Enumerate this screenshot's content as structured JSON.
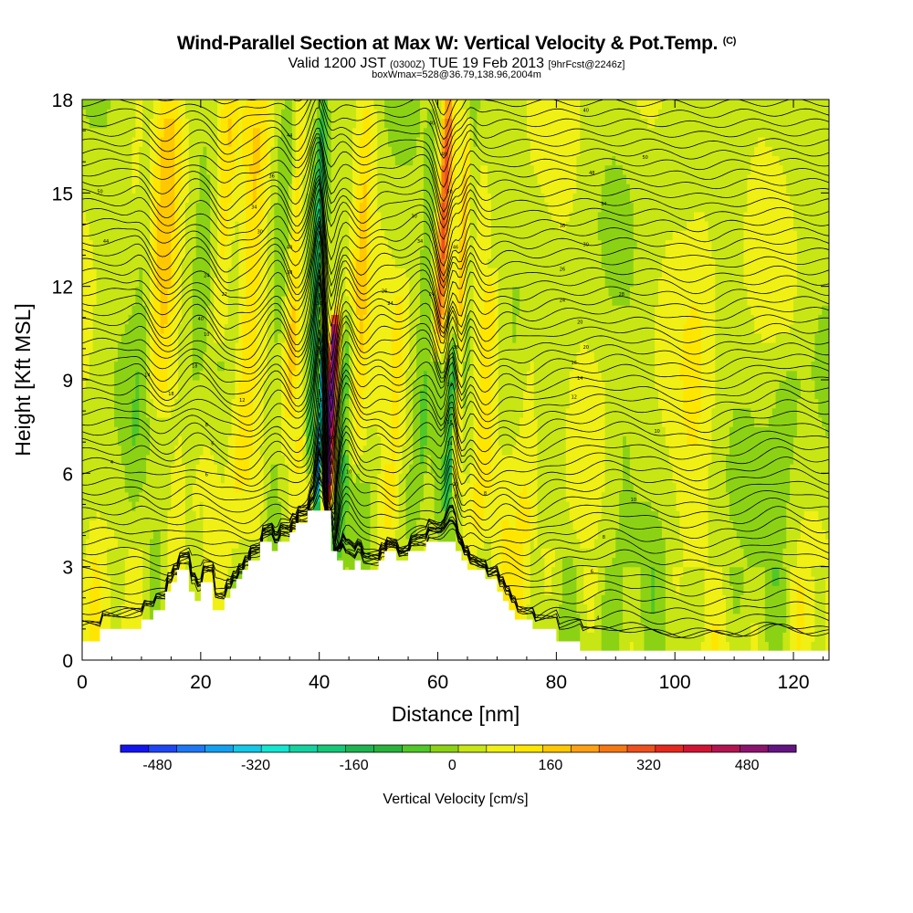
{
  "chart_data": {
    "type": "heatmap",
    "title": "Wind-Parallel Section at Max W: Vertical Velocity & Pot.Temp.",
    "title_mark": "(C)",
    "subtitle_main_a": "Valid 1200 JST",
    "subtitle_small_a": "(0300Z)",
    "subtitle_main_b": "TUE 19 Feb 2013",
    "subtitle_small_b": "[9hrFcst@2246z]",
    "subtitle2": "boxWmax=528@36.79,138.96,2004m",
    "xlabel": "Distance [nm]",
    "ylabel": "Height [Kft MSL]",
    "xlim": [
      0,
      126
    ],
    "ylim": [
      0,
      18
    ],
    "xticks": [
      "0",
      "20",
      "40",
      "60",
      "80",
      "100",
      "120"
    ],
    "yticks": [
      "0",
      "3",
      "6",
      "9",
      "12",
      "15",
      "18"
    ],
    "colorbar": {
      "label": "Vertical Velocity [cm/s]",
      "ticks": [
        "-480",
        "-320",
        "-160",
        "0",
        "160",
        "320",
        "480"
      ],
      "tick_values": [
        -480,
        -320,
        -160,
        0,
        160,
        320,
        480
      ],
      "range": [
        -540,
        560
      ],
      "colors": [
        "#1414f0",
        "#1e46f5",
        "#1e78f5",
        "#14a0f0",
        "#14c8e6",
        "#14e6d2",
        "#14d2a0",
        "#14c878",
        "#1eb450",
        "#28b43c",
        "#50c828",
        "#8cd214",
        "#c8e614",
        "#f0f014",
        "#ffe600",
        "#ffc800",
        "#ffa014",
        "#f57814",
        "#ee501e",
        "#e6281e",
        "#d21432",
        "#b41450",
        "#8c146e",
        "#641482"
      ]
    },
    "velocity_field_cm_s": {
      "background": 40,
      "columns": [
        {
          "x": 10,
          "w": 1.2,
          "h0": 5,
          "h1": 18,
          "v": -40
        },
        {
          "x": 14,
          "w": 2.0,
          "h0": 8,
          "h1": 18,
          "v": 110
        },
        {
          "x": 19,
          "w": 1.5,
          "h0": 0,
          "h1": 18,
          "v": -30
        },
        {
          "x": 24,
          "w": 1.5,
          "h0": 10,
          "h1": 18,
          "v": 100
        },
        {
          "x": 28,
          "w": 2.0,
          "h0": 3,
          "h1": 18,
          "v": 100
        },
        {
          "x": 33,
          "w": 1.5,
          "h0": 3,
          "h1": 18,
          "v": -60
        },
        {
          "x": 36,
          "w": 1.2,
          "h0": 8,
          "h1": 18,
          "v": 110
        },
        {
          "x": 39.5,
          "w": 0.8,
          "h0": 6,
          "h1": 18,
          "v": -180
        },
        {
          "x": 40.2,
          "w": 0.5,
          "h0": 5,
          "h1": 10,
          "v": -400
        },
        {
          "x": 41.8,
          "w": 0.6,
          "h0": 5,
          "h1": 10.5,
          "v": 528
        },
        {
          "x": 42.5,
          "w": 0.8,
          "h0": 5,
          "h1": 11,
          "v": 240
        },
        {
          "x": 44,
          "w": 1.5,
          "h0": 3,
          "h1": 11,
          "v": -120
        },
        {
          "x": 47,
          "w": 1.5,
          "h0": 6,
          "h1": 18,
          "v": 100
        },
        {
          "x": 53,
          "w": 1.5,
          "h0": 4,
          "h1": 12,
          "v": 60
        },
        {
          "x": 58,
          "w": 1.5,
          "h0": 3,
          "h1": 18,
          "v": -50
        },
        {
          "x": 61,
          "w": 1.0,
          "h0": 10,
          "h1": 18,
          "v": 240
        },
        {
          "x": 62.3,
          "w": 0.7,
          "h0": 5,
          "h1": 10,
          "v": -160
        },
        {
          "x": 64,
          "w": 0.8,
          "h0": 5,
          "h1": 17,
          "v": 160
        },
        {
          "x": 65,
          "w": 1.0,
          "h0": 8,
          "h1": 18,
          "v": -100
        },
        {
          "x": 68,
          "w": 1.5,
          "h0": 4,
          "h1": 12,
          "v": 90
        },
        {
          "x": 75,
          "w": 2.0,
          "h0": 0,
          "h1": 12,
          "v": 60
        },
        {
          "x": 90,
          "w": 3.0,
          "h0": 0,
          "h1": 8,
          "v": -40
        },
        {
          "x": 104,
          "w": 3.0,
          "h0": 2,
          "h1": 18,
          "v": 40
        },
        {
          "x": 118,
          "w": 3.0,
          "h0": 0,
          "h1": 10,
          "v": -50
        }
      ]
    },
    "terrain_kft": {
      "x": [
        0,
        3,
        3,
        9,
        10,
        11,
        12,
        13,
        14,
        15,
        16,
        17,
        18,
        19,
        20,
        21,
        22,
        23,
        24,
        25,
        26,
        27,
        28,
        29,
        30,
        31,
        32,
        33,
        34,
        35,
        36,
        37,
        38,
        39,
        40,
        41,
        42,
        43,
        44,
        45,
        46,
        47,
        48,
        49,
        50,
        51,
        52,
        53,
        54,
        55,
        56,
        57,
        58,
        59,
        60,
        61,
        62,
        63,
        64,
        65,
        66,
        67,
        68,
        69,
        70,
        71,
        72,
        73,
        74,
        75,
        76,
        77,
        78,
        79,
        80,
        81,
        82,
        83,
        84,
        85,
        86,
        87,
        126
      ],
      "z": [
        0.6,
        0.6,
        1.0,
        1.0,
        1.3,
        1.3,
        1.6,
        1.6,
        2.2,
        2.5,
        2.9,
        2.9,
        2.2,
        1.9,
        2.5,
        2.5,
        1.6,
        1.6,
        2.0,
        2.3,
        2.6,
        2.9,
        3.2,
        3.2,
        3.8,
        3.8,
        3.5,
        3.8,
        3.8,
        4.1,
        4.4,
        4.4,
        4.8,
        4.8,
        4.8,
        4.8,
        3.5,
        3.2,
        2.9,
        2.9,
        3.2,
        2.9,
        2.9,
        2.9,
        3.2,
        3.5,
        3.5,
        3.2,
        3.2,
        3.5,
        3.5,
        3.5,
        3.8,
        3.8,
        3.8,
        3.8,
        3.8,
        3.5,
        3.2,
        2.9,
        2.9,
        2.9,
        2.6,
        2.6,
        2.2,
        1.9,
        1.6,
        1.3,
        1.3,
        1.3,
        1.0,
        1.0,
        1.0,
        1.0,
        0.6,
        0.6,
        0.6,
        0.6,
        0.3,
        0.3,
        0.3,
        0.3,
        0.3
      ]
    },
    "isentrope_labels": [
      {
        "x": 3,
        "y": 15,
        "t": "50"
      },
      {
        "x": 4,
        "y": 13.4,
        "t": "44"
      },
      {
        "x": 5,
        "y": 6.3,
        "t": "4"
      },
      {
        "x": 11,
        "y": 9.1,
        "t": "14"
      },
      {
        "x": 15,
        "y": 8.5,
        "t": "18"
      },
      {
        "x": 20,
        "y": 10.9,
        "t": "40"
      },
      {
        "x": 21,
        "y": 10.4,
        "t": "10"
      },
      {
        "x": 19,
        "y": 9.4,
        "t": "18"
      },
      {
        "x": 21,
        "y": 7.5,
        "t": "8"
      },
      {
        "x": 22,
        "y": 6.9,
        "t": "6"
      },
      {
        "x": 21,
        "y": 5.9,
        "t": "6"
      },
      {
        "x": 27,
        "y": 8.3,
        "t": "12"
      },
      {
        "x": 21,
        "y": 12.3,
        "t": "24"
      },
      {
        "x": 24,
        "y": 11.7,
        "t": "22"
      },
      {
        "x": 29,
        "y": 14.5,
        "t": "34"
      },
      {
        "x": 32,
        "y": 15.5,
        "t": "36"
      },
      {
        "x": 35,
        "y": 16.8,
        "t": "44"
      },
      {
        "x": 30,
        "y": 13.7,
        "t": "30"
      },
      {
        "x": 35,
        "y": 13.2,
        "t": "40"
      },
      {
        "x": 35,
        "y": 12.4,
        "t": "38"
      },
      {
        "x": 40,
        "y": 11.4,
        "t": "30"
      },
      {
        "x": 40,
        "y": 9.8,
        "t": "24"
      },
      {
        "x": 40,
        "y": 8.3,
        "t": "16"
      },
      {
        "x": 41,
        "y": 7.2,
        "t": "12"
      },
      {
        "x": 40,
        "y": 6.5,
        "t": "12"
      },
      {
        "x": 40,
        "y": 6.0,
        "t": "8"
      },
      {
        "x": 41,
        "y": 5.4,
        "t": "4"
      },
      {
        "x": 42,
        "y": 8.4,
        "t": "18"
      },
      {
        "x": 42,
        "y": 7.1,
        "t": "10"
      },
      {
        "x": 45,
        "y": 6.0,
        "t": "10"
      },
      {
        "x": 51,
        "y": 11.8,
        "t": "26"
      },
      {
        "x": 52,
        "y": 11.4,
        "t": "24"
      },
      {
        "x": 56,
        "y": 14.2,
        "t": "30"
      },
      {
        "x": 57,
        "y": 13.4,
        "t": "34"
      },
      {
        "x": 59,
        "y": 11.7,
        "t": "24"
      },
      {
        "x": 59,
        "y": 17.2,
        "t": "40"
      },
      {
        "x": 61,
        "y": 16.2,
        "t": "48"
      },
      {
        "x": 62,
        "y": 15.0,
        "t": "50"
      },
      {
        "x": 63,
        "y": 13.2,
        "t": "46"
      },
      {
        "x": 63,
        "y": 10.0,
        "t": "38"
      },
      {
        "x": 62,
        "y": 8.8,
        "t": "24"
      },
      {
        "x": 62,
        "y": 7.6,
        "t": "18"
      },
      {
        "x": 62,
        "y": 6.9,
        "t": "14"
      },
      {
        "x": 63,
        "y": 5.6,
        "t": "10"
      },
      {
        "x": 63,
        "y": 5.2,
        "t": "8"
      },
      {
        "x": 68,
        "y": 5.3,
        "t": "8"
      },
      {
        "x": 85,
        "y": 17.6,
        "t": "40"
      },
      {
        "x": 86,
        "y": 15.6,
        "t": "48"
      },
      {
        "x": 95,
        "y": 16.1,
        "t": "50"
      },
      {
        "x": 88,
        "y": 14.6,
        "t": "34"
      },
      {
        "x": 81,
        "y": 13.9,
        "t": "36"
      },
      {
        "x": 85,
        "y": 13.3,
        "t": "30"
      },
      {
        "x": 81,
        "y": 12.5,
        "t": "26"
      },
      {
        "x": 91,
        "y": 11.7,
        "t": "28"
      },
      {
        "x": 81,
        "y": 11.5,
        "t": "24"
      },
      {
        "x": 84,
        "y": 10.8,
        "t": "20"
      },
      {
        "x": 85,
        "y": 10.0,
        "t": "20"
      },
      {
        "x": 83,
        "y": 9.5,
        "t": "16"
      },
      {
        "x": 84,
        "y": 9.0,
        "t": "14"
      },
      {
        "x": 83,
        "y": 8.4,
        "t": "12"
      },
      {
        "x": 97,
        "y": 7.3,
        "t": "10"
      },
      {
        "x": 93,
        "y": 5.1,
        "t": "10"
      },
      {
        "x": 88,
        "y": 3.9,
        "t": "8"
      },
      {
        "x": 86,
        "y": 2.8,
        "t": "6"
      },
      {
        "x": 87,
        "y": 1.3,
        "t": "4"
      }
    ],
    "grid": false,
    "legend": "colorbar-bottom"
  }
}
